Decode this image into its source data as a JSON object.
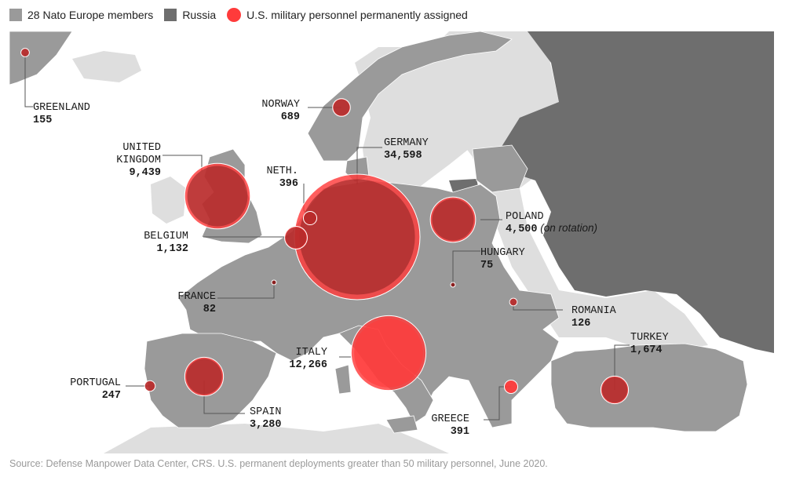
{
  "legend": {
    "nato_label": "28 Nato Europe members",
    "russia_label": "Russia",
    "personnel_label": "U.S. military personnel permanently assigned"
  },
  "colors": {
    "nato": "#9a9a9a",
    "russia": "#6e6e6e",
    "other_land": "#dedede",
    "sea": "#ffffff",
    "bubble": "#ff3b3b",
    "bubble_dark": "#8a2020"
  },
  "countries": [
    {
      "id": "greenland",
      "name": "GREENLAND",
      "value": "155"
    },
    {
      "id": "norway",
      "name": "NORWAY",
      "value": "689"
    },
    {
      "id": "uk",
      "name": "UNITED KINGDOM",
      "name_lines": [
        "UNITED",
        "KINGDOM"
      ],
      "value": "9,439"
    },
    {
      "id": "netherlands",
      "name": "NETH.",
      "value": "396"
    },
    {
      "id": "germany",
      "name": "GERMANY",
      "value": "34,598"
    },
    {
      "id": "belgium",
      "name": "BELGIUM",
      "value": "1,132"
    },
    {
      "id": "poland",
      "name": "POLAND",
      "value": "4,500",
      "note": "(on rotation)"
    },
    {
      "id": "hungary",
      "name": "HUNGARY",
      "value": "75"
    },
    {
      "id": "france",
      "name": "FRANCE",
      "value": "82"
    },
    {
      "id": "romania",
      "name": "ROMANIA",
      "value": "126"
    },
    {
      "id": "italy",
      "name": "ITALY",
      "value": "12,266"
    },
    {
      "id": "turkey",
      "name": "TURKEY",
      "value": "1,674"
    },
    {
      "id": "portugal",
      "name": "PORTUGAL",
      "value": "247"
    },
    {
      "id": "spain",
      "name": "SPAIN",
      "value": "3,280"
    },
    {
      "id": "greece",
      "name": "GREECE",
      "value": "391"
    }
  ],
  "source": "Source: Defense Manpower Data Center, CRS. U.S. permanent deployments greater than 50 military personnel, June 2020."
}
